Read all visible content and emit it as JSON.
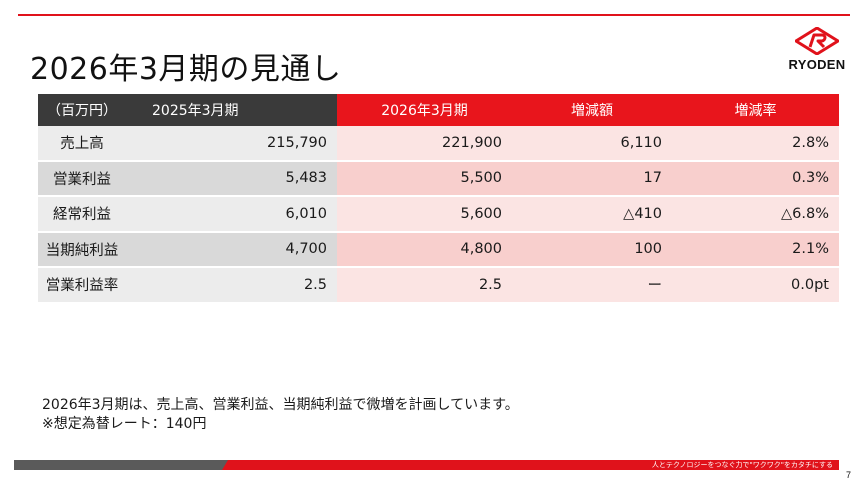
{
  "title": "2026年3月期の見通し",
  "logo": {
    "text": "RYODEN",
    "icon": "ryoden-diamond-logo-icon",
    "color": "#e0121b"
  },
  "table": {
    "headers": [
      "（百万円）",
      "2025年3月期",
      "2026年3月期",
      "増減額",
      "増減率"
    ],
    "rows": [
      {
        "label": "売上高",
        "prev": "215,790",
        "cur": "221,900",
        "diff": "6,110",
        "rate": "2.8%"
      },
      {
        "label": "営業利益",
        "prev": "5,483",
        "cur": "5,500",
        "diff": "17",
        "rate": "0.3%"
      },
      {
        "label": "経常利益",
        "prev": "6,010",
        "cur": "5,600",
        "diff": "△410",
        "rate": "△6.8%"
      },
      {
        "label": "当期純利益",
        "prev": "4,700",
        "cur": "4,800",
        "diff": "100",
        "rate": "2.1%"
      },
      {
        "label": "営業利益率",
        "prev": "2.5",
        "cur": "2.5",
        "diff": "ー",
        "rate": "0.0pt"
      }
    ]
  },
  "notes": [
    "2026年3月期は、売上高、営業利益、当期純利益で微増を計画しています。",
    "※想定為替レート：140円"
  ],
  "footer": {
    "slogan": "人とテクノロジーをつなぐ力で\"ワクワク\"をカタチにする"
  },
  "page_number": "7",
  "colors": {
    "accent": "#e0121b",
    "header_dark": "#3a3a3a",
    "footer_gray": "#5a5a5a"
  }
}
